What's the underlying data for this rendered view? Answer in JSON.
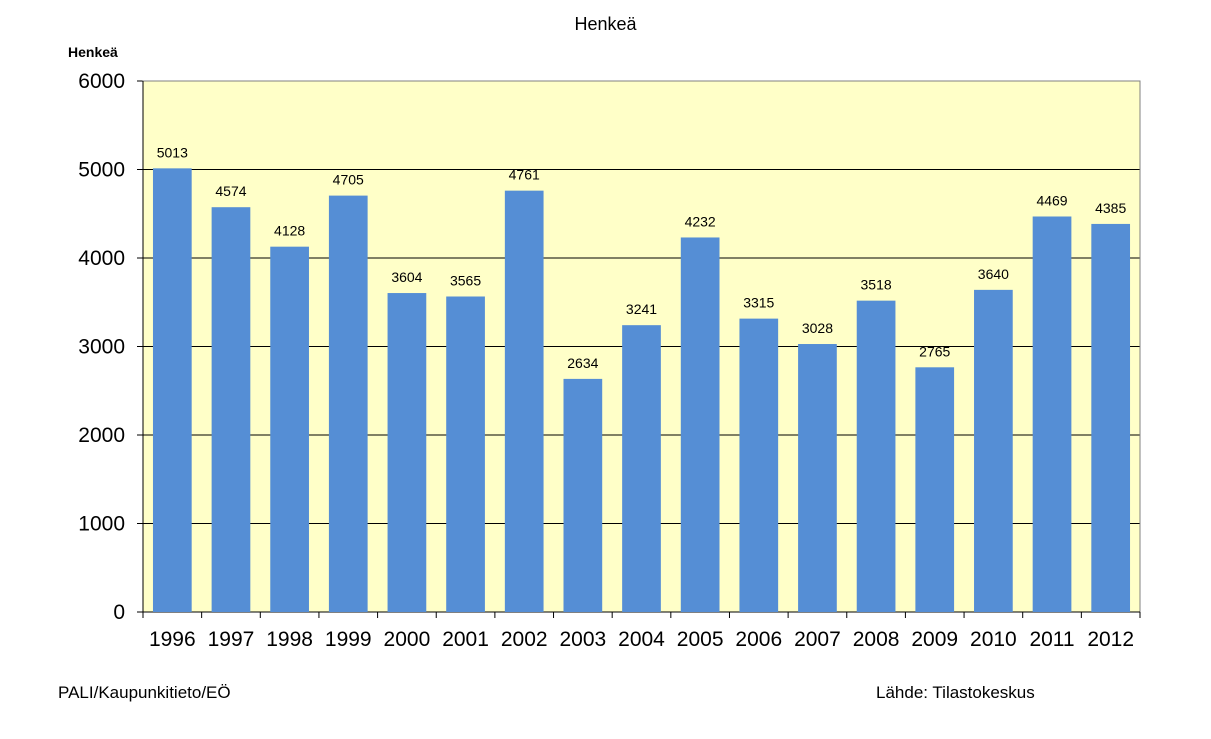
{
  "chart_data": {
    "type": "bar",
    "title": "Henkeä",
    "ylabel": "Henkeä",
    "xlabel": "",
    "categories": [
      "1996",
      "1997",
      "1998",
      "1999",
      "2000",
      "2001",
      "2002",
      "2003",
      "2004",
      "2005",
      "2006",
      "2007",
      "2008",
      "2009",
      "2010",
      "2011",
      "2012"
    ],
    "series": [
      {
        "values": [
          5013,
          4574,
          4128,
          4705,
          3604,
          3565,
          4761,
          2634,
          3241,
          4232,
          3315,
          3028,
          3518,
          2765,
          3640,
          4469,
          4385
        ]
      }
    ],
    "ylim": [
      0,
      6000
    ],
    "yticks": [
      "0",
      "1000",
      "2000",
      "3000",
      "4000",
      "5000",
      "6000"
    ],
    "grid": true,
    "data_labels": true,
    "colors": {
      "bar": "#558ed5",
      "plot_background": "#ffffc8"
    }
  },
  "footer": {
    "left": "PALI/Kaupunkitieto/EÖ",
    "right": "Lähde: Tilastokeskus"
  }
}
